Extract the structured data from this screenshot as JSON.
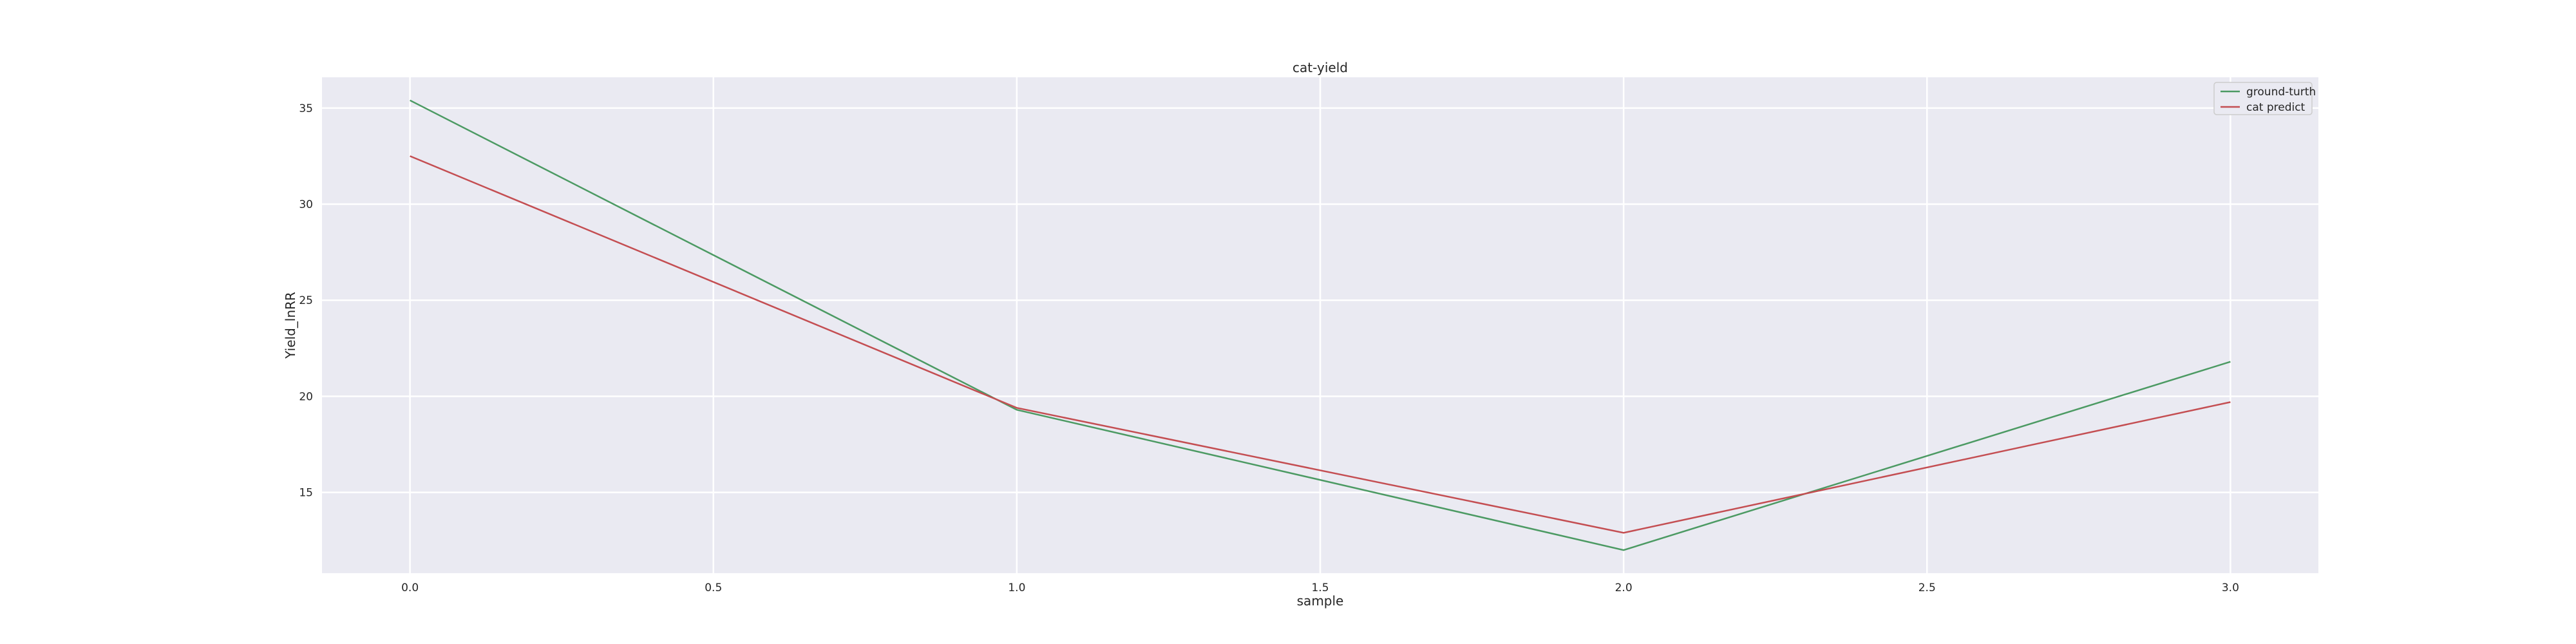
{
  "chart_data": {
    "type": "line",
    "title": "cat-yield",
    "xlabel": "sample",
    "ylabel": "Yield_lnRR",
    "x": [
      0,
      1,
      2,
      3
    ],
    "xlim": [
      -0.145,
      3.145
    ],
    "ylim": [
      10.8,
      36.6
    ],
    "xticks": [
      0.0,
      0.5,
      1.0,
      1.5,
      2.0,
      2.5,
      3.0
    ],
    "xtick_labels": [
      "0.0",
      "0.5",
      "1.0",
      "1.5",
      "2.0",
      "2.5",
      "3.0"
    ],
    "yticks": [
      15,
      20,
      25,
      30,
      35
    ],
    "ytick_labels": [
      "15",
      "20",
      "25",
      "30",
      "35"
    ],
    "grid": true,
    "legend_position": "top-right",
    "series": [
      {
        "name": "ground-turth",
        "color": "#4c9a63",
        "values": [
          35.4,
          19.3,
          12.0,
          21.8
        ]
      },
      {
        "name": "cat predict",
        "color": "#c44e52",
        "values": [
          32.5,
          19.4,
          12.9,
          19.7
        ]
      }
    ]
  }
}
